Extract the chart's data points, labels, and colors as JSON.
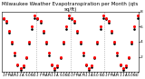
{
  "title": "Milwaukee Weather Evapotranspiration per Month (qts sq/ft)",
  "months_per_year": [
    "J",
    "F",
    "M",
    "A",
    "M",
    "J",
    "J",
    "A",
    "S",
    "O",
    "N",
    "D"
  ],
  "num_years": 4,
  "red_values": [
    7.2,
    6.8,
    5.5,
    4.0,
    2.5,
    1.0,
    0.5,
    0.8,
    2.0,
    4.0,
    6.0,
    7.5,
    7.2,
    6.8,
    5.5,
    4.0,
    2.5,
    1.0,
    0.5,
    0.8,
    2.0,
    4.0,
    6.0,
    7.5,
    7.2,
    6.8,
    5.5,
    4.0,
    2.5,
    1.0,
    0.5,
    0.8,
    2.0,
    4.0,
    6.0,
    7.5,
    7.2,
    6.8,
    5.5,
    4.0,
    2.5,
    1.0,
    0.5,
    0.8,
    2.0,
    4.0,
    6.0,
    7.5
  ],
  "black_values": [
    7.0,
    6.5,
    5.2,
    3.7,
    2.2,
    0.8,
    0.3,
    0.6,
    1.8,
    3.7,
    5.7,
    7.2,
    7.0,
    6.5,
    5.2,
    3.7,
    2.2,
    0.8,
    0.3,
    0.6,
    1.8,
    3.7,
    5.7,
    7.2,
    7.0,
    6.5,
    5.2,
    3.7,
    2.2,
    0.8,
    0.3,
    0.6,
    1.8,
    3.7,
    5.7,
    7.2,
    7.0,
    6.5,
    5.2,
    3.7,
    2.2,
    0.8,
    0.3,
    0.6,
    1.8,
    3.7,
    5.7,
    7.2
  ],
  "ylim": [
    0,
    8
  ],
  "yticks": [
    2,
    4,
    6,
    8
  ],
  "year_dividers": [
    11.5,
    23.5,
    35.5
  ],
  "background_color": "#ffffff",
  "red_color": "#ff0000",
  "black_color": "#000000",
  "grid_color": "#999999",
  "title_fontsize": 4.0,
  "tick_fontsize": 3.2,
  "marker_size_red": 1.2,
  "marker_size_black": 0.9
}
